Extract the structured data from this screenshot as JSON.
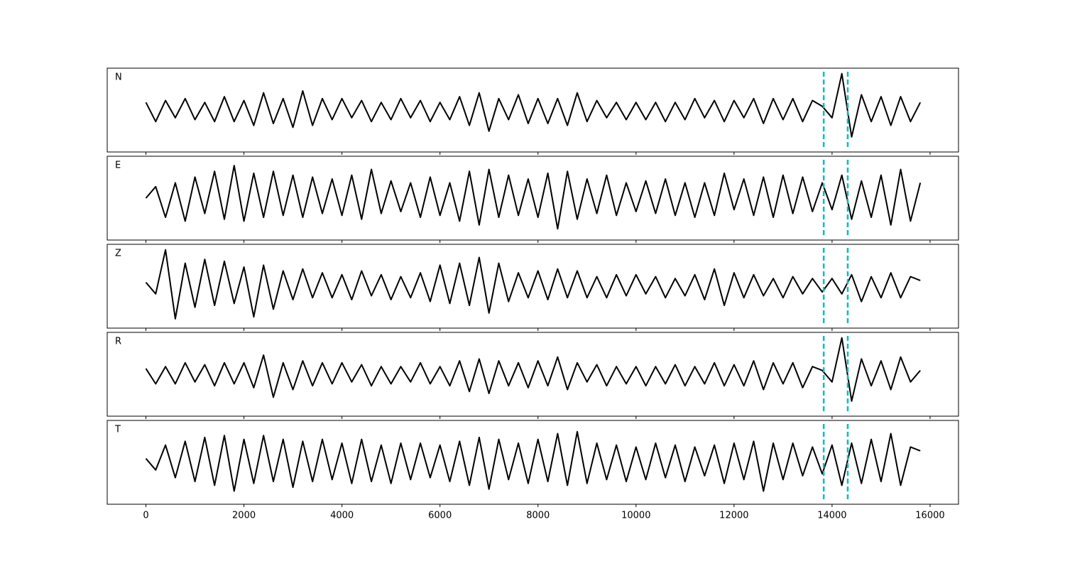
{
  "chart_data": {
    "type": "line",
    "x": [
      0,
      200,
      400,
      600,
      800,
      1000,
      1200,
      1400,
      1600,
      1800,
      2000,
      2200,
      2400,
      2600,
      2800,
      3000,
      3200,
      3400,
      3600,
      3800,
      4000,
      4200,
      4400,
      4600,
      4800,
      5000,
      5200,
      5400,
      5600,
      5800,
      6000,
      6200,
      6400,
      6600,
      6800,
      7000,
      7200,
      7400,
      7600,
      7800,
      8000,
      8200,
      8400,
      8600,
      8800,
      9000,
      9200,
      9400,
      9600,
      9800,
      10000,
      10200,
      10400,
      10600,
      10800,
      11000,
      11200,
      11400,
      11600,
      11800,
      12000,
      12200,
      12400,
      12600,
      12800,
      13000,
      13200,
      13400,
      13600,
      13800,
      14000,
      14200,
      14400,
      14600,
      14800,
      15000,
      15200,
      15400,
      15600,
      15800
    ],
    "series": [
      {
        "name": "N",
        "color": "#000000",
        "values": [
          0.2,
          -0.3,
          0.25,
          -0.2,
          0.3,
          -0.25,
          0.2,
          -0.3,
          0.35,
          -0.3,
          0.25,
          -0.4,
          0.45,
          -0.35,
          0.3,
          -0.45,
          0.5,
          -0.4,
          0.3,
          -0.25,
          0.3,
          -0.2,
          0.25,
          -0.3,
          0.2,
          -0.25,
          0.3,
          -0.2,
          0.25,
          -0.3,
          0.2,
          -0.25,
          0.35,
          -0.4,
          0.45,
          -0.55,
          0.3,
          -0.25,
          0.4,
          -0.35,
          0.3,
          -0.35,
          0.3,
          -0.4,
          0.45,
          -0.3,
          0.25,
          -0.2,
          0.2,
          -0.25,
          0.2,
          -0.25,
          0.2,
          -0.3,
          0.2,
          -0.25,
          0.3,
          -0.2,
          0.25,
          -0.3,
          0.25,
          -0.2,
          0.3,
          -0.35,
          0.3,
          -0.25,
          0.3,
          -0.3,
          0.25,
          0.1,
          -0.2,
          0.95,
          -0.7,
          0.4,
          -0.3,
          0.35,
          -0.4,
          0.35,
          -0.3,
          0.2
        ]
      },
      {
        "name": "E",
        "color": "#000000",
        "values": [
          0.0,
          0.3,
          -0.5,
          0.4,
          -0.6,
          0.55,
          -0.4,
          0.7,
          -0.55,
          0.85,
          -0.6,
          0.65,
          -0.5,
          0.7,
          -0.45,
          0.6,
          -0.5,
          0.55,
          -0.4,
          0.5,
          -0.45,
          0.6,
          -0.55,
          0.75,
          -0.4,
          0.45,
          -0.35,
          0.4,
          -0.5,
          0.55,
          -0.45,
          0.4,
          -0.6,
          0.7,
          -0.7,
          0.75,
          -0.5,
          0.6,
          -0.45,
          0.5,
          -0.5,
          0.65,
          -0.8,
          0.7,
          -0.55,
          0.5,
          -0.4,
          0.6,
          -0.45,
          0.4,
          -0.35,
          0.45,
          -0.4,
          0.5,
          -0.45,
          0.4,
          -0.5,
          0.4,
          -0.45,
          0.65,
          -0.3,
          0.5,
          -0.45,
          0.55,
          -0.5,
          0.6,
          -0.4,
          0.55,
          -0.35,
          0.4,
          -0.3,
          0.6,
          -0.55,
          0.45,
          -0.5,
          0.6,
          -0.7,
          0.75,
          -0.6,
          0.4
        ]
      },
      {
        "name": "Z",
        "color": "#000000",
        "values": [
          0.1,
          -0.2,
          0.95,
          -0.85,
          0.6,
          -0.55,
          0.7,
          -0.5,
          0.65,
          -0.45,
          0.5,
          -0.8,
          0.55,
          -0.6,
          0.4,
          -0.35,
          0.45,
          -0.3,
          0.35,
          -0.3,
          0.3,
          -0.35,
          0.4,
          -0.25,
          0.3,
          -0.35,
          0.25,
          -0.3,
          0.35,
          -0.4,
          0.55,
          -0.45,
          0.6,
          -0.5,
          0.75,
          -0.7,
          0.6,
          -0.4,
          0.35,
          -0.3,
          0.4,
          -0.35,
          0.45,
          -0.3,
          0.4,
          -0.3,
          0.25,
          -0.3,
          0.3,
          -0.25,
          0.3,
          -0.2,
          0.25,
          -0.3,
          0.2,
          -0.25,
          0.3,
          -0.35,
          0.45,
          -0.5,
          0.35,
          -0.3,
          0.3,
          -0.25,
          0.2,
          -0.3,
          0.25,
          -0.2,
          0.2,
          -0.15,
          0.2,
          -0.2,
          0.3,
          -0.4,
          0.25,
          -0.3,
          0.35,
          -0.3,
          0.25,
          0.15
        ]
      },
      {
        "name": "R",
        "color": "#000000",
        "values": [
          0.15,
          -0.25,
          0.2,
          -0.25,
          0.3,
          -0.2,
          0.25,
          -0.3,
          0.3,
          -0.25,
          0.3,
          -0.35,
          0.5,
          -0.6,
          0.3,
          -0.4,
          0.35,
          -0.3,
          0.3,
          -0.25,
          0.3,
          -0.2,
          0.25,
          -0.3,
          0.2,
          -0.25,
          0.2,
          -0.2,
          0.3,
          -0.25,
          0.2,
          -0.3,
          0.35,
          -0.45,
          0.4,
          -0.5,
          0.35,
          -0.3,
          0.3,
          -0.35,
          0.35,
          -0.3,
          0.45,
          -0.4,
          0.3,
          -0.2,
          0.25,
          -0.3,
          0.2,
          -0.25,
          0.2,
          -0.3,
          0.2,
          -0.25,
          0.25,
          -0.3,
          0.2,
          -0.25,
          0.3,
          -0.3,
          0.25,
          -0.3,
          0.35,
          -0.4,
          0.3,
          -0.25,
          0.3,
          -0.35,
          0.2,
          0.1,
          -0.2,
          0.95,
          -0.7,
          0.4,
          -0.3,
          0.35,
          -0.4,
          0.45,
          -0.2,
          0.1
        ]
      },
      {
        "name": "T",
        "color": "#000000",
        "values": [
          0.1,
          -0.2,
          0.45,
          -0.4,
          0.55,
          -0.5,
          0.65,
          -0.6,
          0.7,
          -0.75,
          0.6,
          -0.55,
          0.7,
          -0.5,
          0.6,
          -0.65,
          0.55,
          -0.5,
          0.6,
          -0.45,
          0.5,
          -0.55,
          0.6,
          -0.5,
          0.45,
          -0.55,
          0.5,
          -0.45,
          0.5,
          -0.4,
          0.45,
          -0.5,
          0.55,
          -0.6,
          0.65,
          -0.7,
          0.6,
          -0.45,
          0.5,
          -0.55,
          0.6,
          -0.5,
          0.75,
          -0.6,
          0.8,
          -0.55,
          0.5,
          -0.45,
          0.45,
          -0.5,
          0.4,
          -0.45,
          0.5,
          -0.4,
          0.45,
          -0.5,
          0.4,
          -0.35,
          0.45,
          -0.55,
          0.5,
          -0.45,
          0.55,
          -0.75,
          0.5,
          -0.45,
          0.5,
          -0.35,
          0.4,
          -0.3,
          0.45,
          -0.6,
          0.5,
          -0.55,
          0.6,
          -0.5,
          0.75,
          -0.6,
          0.4,
          0.3
        ]
      }
    ],
    "xlim": [
      -790,
      16580
    ],
    "xticks": [
      0,
      2000,
      4000,
      6000,
      8000,
      10000,
      12000,
      14000,
      16000
    ],
    "ylim": [
      -1,
      1
    ],
    "vlines": [
      13830,
      14320
    ],
    "vline_color": "#00bfbf"
  }
}
